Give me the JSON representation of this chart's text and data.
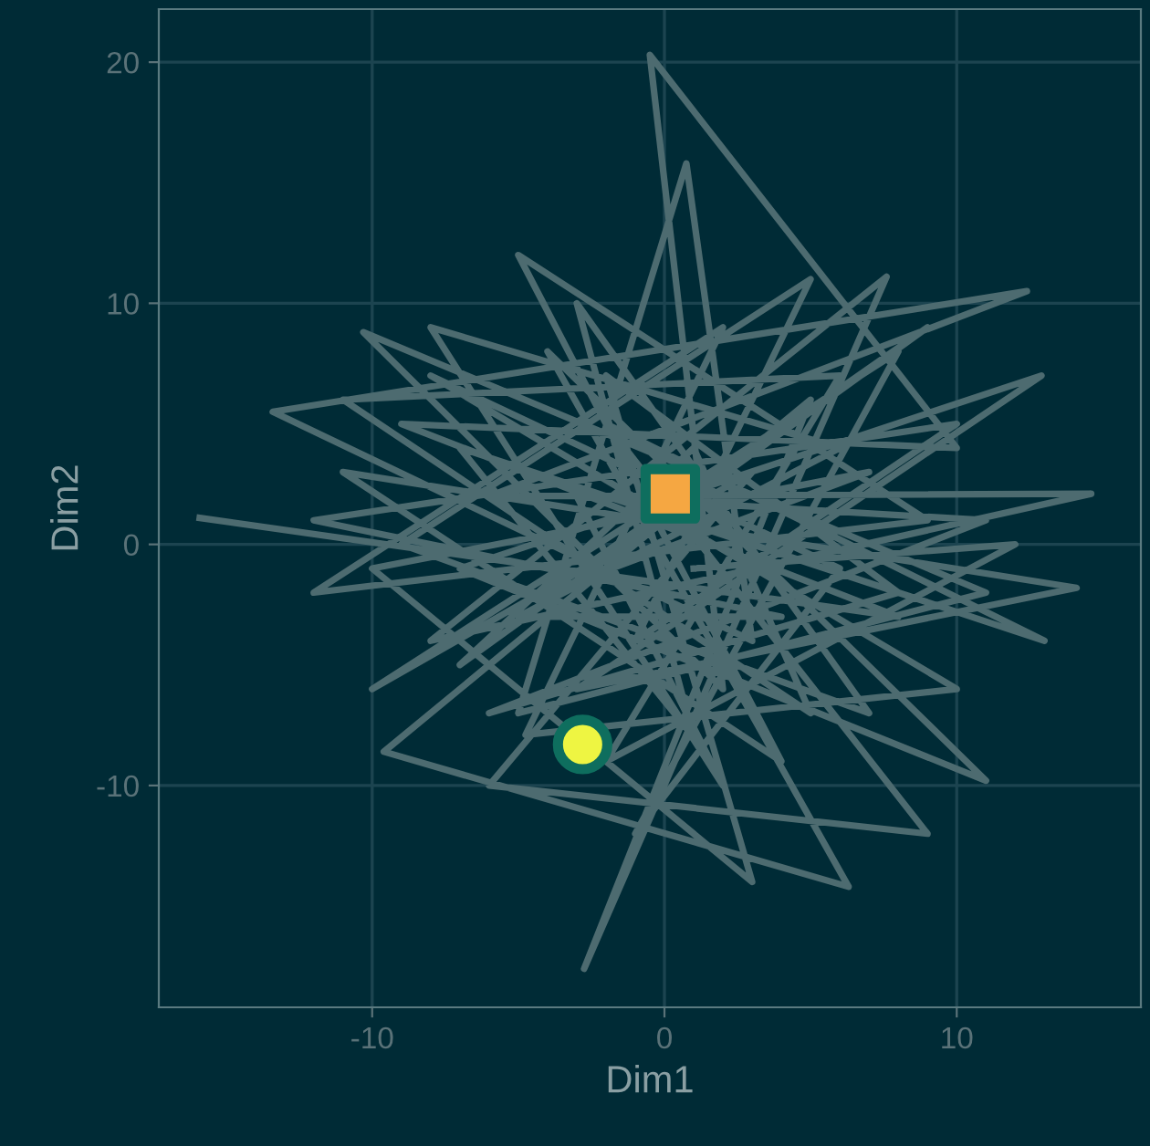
{
  "chart_data": {
    "type": "line",
    "xlabel": "Dim1",
    "ylabel": "Dim2",
    "xlim": [
      -17.3,
      16.3
    ],
    "ylim": [
      -19.2,
      22.2
    ],
    "xticks": [
      -10,
      0,
      10
    ],
    "yticks": [
      -10,
      0,
      10,
      20
    ],
    "grid": true,
    "series": [
      {
        "color": "#4d6b70",
        "x": [
          -15.9,
          8,
          -9,
          10,
          -0.5,
          2,
          -10.3,
          11,
          -5,
          0.75,
          3,
          -13.4,
          12.4,
          -6,
          14.6,
          -8,
          7.6,
          -2.75,
          5,
          -9.6,
          6.3,
          -4,
          11,
          -7,
          12.9,
          -3,
          14.1,
          -11,
          4,
          -5,
          9,
          -12,
          2,
          -4.75,
          10,
          -8,
          6,
          -1,
          8,
          -10,
          3,
          -6,
          9,
          -2,
          13,
          -7,
          1,
          -3,
          7,
          -9,
          5,
          -1,
          10,
          -12,
          4,
          -5,
          6,
          -8,
          2,
          -3,
          11,
          -6,
          8,
          -2,
          3,
          -10,
          7,
          -4,
          9,
          -7,
          1,
          5,
          -11,
          6,
          -2,
          12,
          1
        ],
        "values": [
          1.1,
          -3,
          5,
          4,
          20.3,
          -6,
          8.8,
          -2,
          -7,
          15.8,
          -4,
          5.5,
          10.5,
          2,
          2.1,
          -4,
          11.1,
          -17.6,
          6,
          -8.6,
          -14.2,
          8,
          -9.8,
          -1,
          7,
          -6,
          -1.8,
          3,
          -9,
          12,
          1,
          -2,
          9,
          -7.9,
          -6,
          7,
          -1,
          -12,
          8,
          -6,
          3,
          -10,
          -12,
          5,
          -4,
          4,
          -8,
          10,
          -7,
          0,
          11,
          -4,
          5,
          1,
          -3,
          -3,
          4,
          9,
          -10,
          2,
          1,
          -7,
          -2,
          7,
          -14,
          -1,
          3,
          -2,
          9,
          -5,
          4,
          -7,
          6,
          7,
          -9,
          0,
          -1
        ]
      },
      {
        "type": "scatter",
        "marker": "square",
        "color": "#f5a742",
        "x": [
          0.2
        ],
        "values": [
          2.1
        ]
      },
      {
        "type": "scatter",
        "marker": "circle",
        "color": "#eef542",
        "x": [
          -2.8
        ],
        "values": [
          -8.3
        ]
      }
    ]
  }
}
